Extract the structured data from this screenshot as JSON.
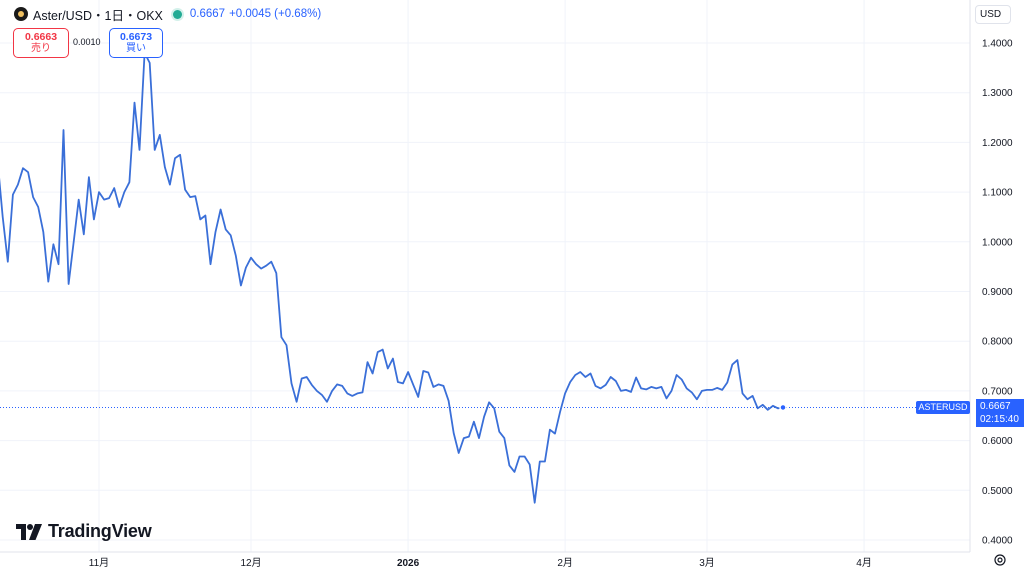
{
  "legend": {
    "symbol": "Aster/USD・1日・OKX",
    "last_price": "0.6667",
    "change": "+0.0045 (+0.68%)"
  },
  "trade": {
    "sell_price": "0.6663",
    "sell_label": "売り",
    "spread": "0.0010",
    "buy_price": "0.6673",
    "buy_label": "買い"
  },
  "currency_button": "USD",
  "brand": "TradingView",
  "price_tag": {
    "symbol": "ASTERUSD",
    "price": "0.6667",
    "countdown": "02:15:40"
  },
  "colors": {
    "line": "#3a6fd8",
    "accent": "#2962ff",
    "sell": "#f23645",
    "status": "#22ab94"
  },
  "chart_data": {
    "type": "line",
    "title": "Aster/USD・1日・OKX",
    "xlabel": "",
    "ylabel": "",
    "ylim": [
      0.38,
      1.45
    ],
    "yticks": [
      "1.4000",
      "1.3000",
      "1.2000",
      "1.1000",
      "1.0000",
      "0.9000",
      "0.8000",
      "0.7000",
      "0.6000",
      "0.5000",
      "0.4000"
    ],
    "xticks": [
      {
        "label": "11月",
        "date": "2025-11-01"
      },
      {
        "label": "12月",
        "date": "2025-12-01"
      },
      {
        "label": "2026",
        "date": "2026-01-01"
      },
      {
        "label": "2月",
        "date": "2026-02-01"
      },
      {
        "label": "3月",
        "date": "2026-03-01"
      },
      {
        "label": "4月",
        "date": "2026-04-01"
      }
    ],
    "grid": true,
    "x_start": "2025-10-09",
    "series": [
      {
        "values": [
          1.155,
          1.18,
          1.21,
          1.16,
          1.05,
          0.96,
          1.095,
          1.115,
          1.148,
          1.14,
          1.09,
          1.07,
          1.02,
          0.92,
          0.995,
          0.955,
          1.225,
          0.915,
          1.0,
          1.085,
          1.015,
          1.13,
          1.045,
          1.1,
          1.085,
          1.088,
          1.108,
          1.07,
          1.1,
          1.12,
          1.28,
          1.185,
          1.38,
          1.36,
          1.185,
          1.215,
          1.15,
          1.115,
          1.168,
          1.175,
          1.105,
          1.09,
          1.092,
          1.045,
          1.053,
          0.955,
          1.02,
          1.065,
          1.025,
          1.013,
          0.972,
          0.912,
          0.948,
          0.968,
          0.955,
          0.946,
          0.952,
          0.96,
          0.937,
          0.808,
          0.792,
          0.715,
          0.678,
          0.725,
          0.728,
          0.712,
          0.7,
          0.692,
          0.678,
          0.7,
          0.713,
          0.71,
          0.695,
          0.69,
          0.695,
          0.697,
          0.758,
          0.735,
          0.778,
          0.783,
          0.745,
          0.765,
          0.718,
          0.715,
          0.738,
          0.713,
          0.688,
          0.74,
          0.737,
          0.708,
          0.713,
          0.71,
          0.68,
          0.615,
          0.575,
          0.605,
          0.608,
          0.638,
          0.605,
          0.648,
          0.677,
          0.665,
          0.618,
          0.605,
          0.55,
          0.537,
          0.568,
          0.568,
          0.552,
          0.475,
          0.558,
          0.558,
          0.622,
          0.614,
          0.658,
          0.695,
          0.718,
          0.732,
          0.738,
          0.728,
          0.735,
          0.71,
          0.705,
          0.712,
          0.728,
          0.72,
          0.7,
          0.702,
          0.698,
          0.727,
          0.705,
          0.703,
          0.708,
          0.705,
          0.708,
          0.685,
          0.7,
          0.732,
          0.723,
          0.705,
          0.697,
          0.683,
          0.7,
          0.702,
          0.702,
          0.706,
          0.702,
          0.717,
          0.753,
          0.762,
          0.695,
          0.683,
          0.69,
          0.665,
          0.672,
          0.662,
          0.67,
          0.665,
          0.6667
        ]
      }
    ],
    "last_value": 0.6667
  }
}
